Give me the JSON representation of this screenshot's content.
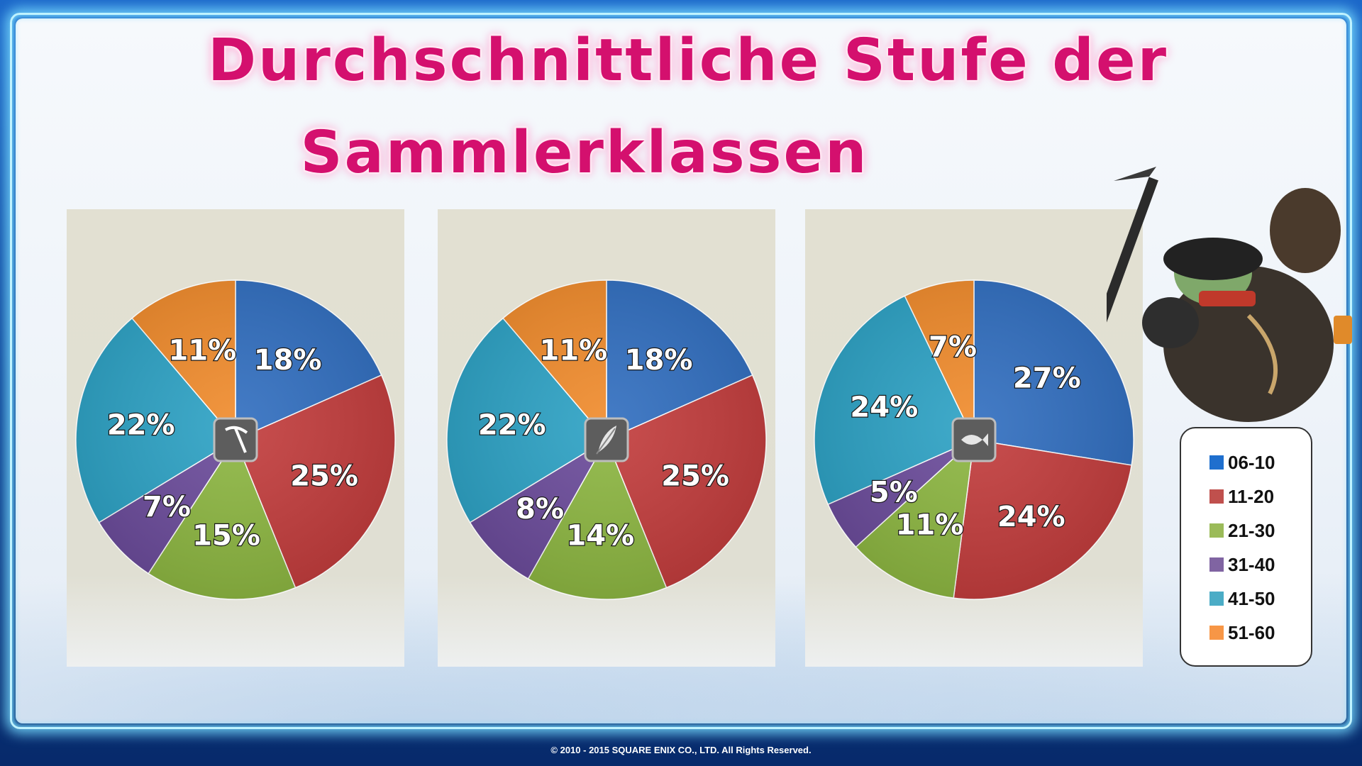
{
  "title": {
    "line1": "Durchschnittliche Stufe der",
    "line2": "Sammlerklassen"
  },
  "colors": {
    "06-10": "#2f6dbf",
    "11-20": "#c23b3b",
    "21-30": "#8cb640",
    "31-40": "#6a4a9a",
    "41-50": "#2ba1c4",
    "51-60": "#f08a2a"
  },
  "legend": [
    {
      "label": "06-10",
      "color": "#1f6fce"
    },
    {
      "label": "11-20",
      "color": "#c0504d"
    },
    {
      "label": "21-30",
      "color": "#9bbb59"
    },
    {
      "label": "31-40",
      "color": "#8064a2"
    },
    {
      "label": "41-50",
      "color": "#4bacc6"
    },
    {
      "label": "51-60",
      "color": "#f79646"
    }
  ],
  "chart_data": [
    {
      "type": "pie",
      "icon": "pickaxe-icon",
      "categories": [
        "06-10",
        "11-20",
        "21-30",
        "31-40",
        "41-50",
        "51-60"
      ],
      "values": [
        18,
        25,
        15,
        7,
        22,
        11
      ],
      "labels": [
        "18%",
        "25%",
        "15%",
        "7%",
        "22%",
        "11%"
      ]
    },
    {
      "type": "pie",
      "icon": "feather-icon",
      "categories": [
        "06-10",
        "11-20",
        "21-30",
        "31-40",
        "41-50",
        "51-60"
      ],
      "values": [
        18,
        25,
        14,
        8,
        22,
        11
      ],
      "labels": [
        "18%",
        "25%",
        "14%",
        "8%",
        "22%",
        "11%"
      ]
    },
    {
      "type": "pie",
      "icon": "fish-icon",
      "categories": [
        "06-10",
        "11-20",
        "21-30",
        "31-40",
        "41-50",
        "51-60"
      ],
      "values": [
        27,
        24,
        11,
        5,
        24,
        7
      ],
      "labels": [
        "27%",
        "24%",
        "11%",
        "5%",
        "24%",
        "7%"
      ]
    }
  ],
  "copyright": "© 2010 - 2015 SQUARE ENIX CO., LTD. All Rights Reserved."
}
